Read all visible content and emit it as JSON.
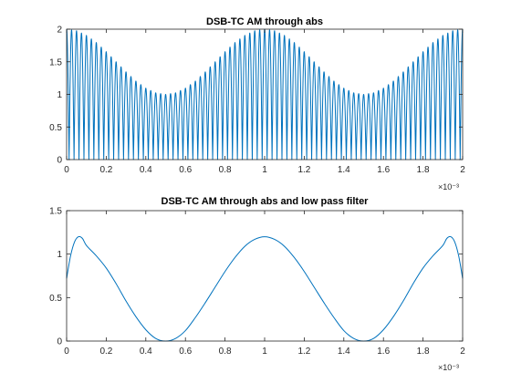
{
  "chart_data": [
    {
      "type": "line",
      "title": "DSB-TC AM through abs",
      "xlabel": "",
      "ylabel": "",
      "x_exponent_label": "×10⁻³",
      "xlim": [
        0,
        2
      ],
      "ylim": [
        0,
        2
      ],
      "x_ticks": [
        "0",
        "0.2",
        "0.4",
        "0.6",
        "0.8",
        "1",
        "1.2",
        "1.4",
        "1.6",
        "1.8",
        "2"
      ],
      "y_ticks": [
        "0",
        "0.5",
        "1",
        "1.5",
        "2"
      ],
      "grid": false,
      "color": "#0072BD",
      "series": [
        {
          "description": "|(1 + cos(2π·1000·t))·cos(2π·20000·t)|, t in ms",
          "x": [
            0,
            0.05,
            0.1,
            0.15,
            0.2,
            0.25,
            0.3,
            0.35,
            0.4,
            0.45,
            0.5,
            0.55,
            0.6,
            0.65,
            0.7,
            0.75,
            0.8,
            0.85,
            0.9,
            0.95,
            1.0,
            1.05,
            1.1,
            1.15,
            1.2,
            1.25,
            1.3,
            1.35,
            1.4,
            1.45,
            1.5,
            1.55,
            1.6,
            1.65,
            1.7,
            1.75,
            1.8,
            1.85,
            1.9,
            1.95,
            2.0
          ],
          "envelope": [
            2.0,
            1.976,
            1.905,
            1.796,
            1.655,
            1.5,
            1.345,
            1.204,
            1.095,
            1.024,
            1.0,
            1.024,
            1.095,
            1.204,
            1.345,
            1.5,
            1.655,
            1.796,
            1.905,
            1.976,
            2.0,
            1.976,
            1.905,
            1.796,
            1.655,
            1.5,
            1.345,
            1.204,
            1.095,
            1.024,
            1.0,
            1.024,
            1.095,
            1.204,
            1.345,
            1.5,
            1.655,
            1.796,
            1.905,
            1.976,
            2.0
          ],
          "carrier_cycles_per_unit": 20,
          "modulation_cycles_per_unit": 1
        }
      ]
    },
    {
      "type": "line",
      "title": "DSB-TC AM through abs and low pass filter",
      "xlabel": "",
      "ylabel": "",
      "x_exponent_label": "×10⁻³",
      "xlim": [
        0,
        2
      ],
      "ylim": [
        0,
        1.5
      ],
      "x_ticks": [
        "0",
        "0.2",
        "0.4",
        "0.6",
        "0.8",
        "1",
        "1.2",
        "1.4",
        "1.6",
        "1.8",
        "2"
      ],
      "y_ticks": [
        "0",
        "0.5",
        "1",
        "1.5"
      ],
      "grid": false,
      "color": "#0072BD",
      "series": [
        {
          "x": [
            0,
            0.02,
            0.04,
            0.06,
            0.08,
            0.1,
            0.15,
            0.2,
            0.25,
            0.3,
            0.35,
            0.4,
            0.45,
            0.5,
            0.55,
            0.6,
            0.65,
            0.7,
            0.75,
            0.8,
            0.85,
            0.9,
            0.95,
            1.0,
            1.05,
            1.1,
            1.15,
            1.2,
            1.25,
            1.3,
            1.35,
            1.4,
            1.45,
            1.5,
            1.55,
            1.6,
            1.65,
            1.7,
            1.75,
            1.8,
            1.85,
            1.9,
            1.92,
            1.94,
            1.96,
            1.98,
            2.0
          ],
          "y": [
            0.72,
            0.98,
            1.14,
            1.2,
            1.18,
            1.1,
            0.98,
            0.84,
            0.66,
            0.46,
            0.28,
            0.13,
            0.03,
            0.0,
            0.03,
            0.12,
            0.27,
            0.44,
            0.62,
            0.8,
            0.96,
            1.09,
            1.17,
            1.2,
            1.17,
            1.09,
            0.96,
            0.8,
            0.62,
            0.44,
            0.27,
            0.12,
            0.03,
            0.0,
            0.03,
            0.13,
            0.28,
            0.46,
            0.66,
            0.84,
            0.98,
            1.1,
            1.18,
            1.2,
            1.14,
            0.98,
            0.72
          ]
        }
      ]
    }
  ]
}
